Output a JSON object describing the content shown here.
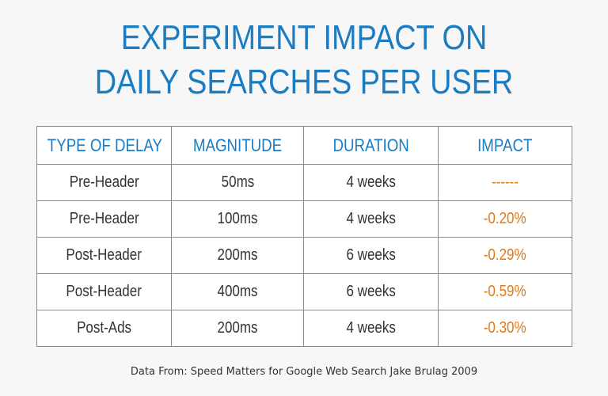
{
  "title": {
    "line1": "EXPERIMENT IMPACT ON",
    "line2": "DAILY SEARCHES PER USER"
  },
  "table": {
    "headers": [
      "TYPE OF DELAY",
      "MAGNITUDE",
      "DURATION",
      "IMPACT"
    ],
    "rows": [
      {
        "type": "Pre-Header",
        "magnitude": "50ms",
        "duration": "4 weeks",
        "impact": "------"
      },
      {
        "type": "Pre-Header",
        "magnitude": "100ms",
        "duration": "4 weeks",
        "impact": "-0.20%"
      },
      {
        "type": "Post-Header",
        "magnitude": "200ms",
        "duration": "6 weeks",
        "impact": "-0.29%"
      },
      {
        "type": "Post-Header",
        "magnitude": "400ms",
        "duration": "6 weeks",
        "impact": "-0.59%"
      },
      {
        "type": "Post-Ads",
        "magnitude": "200ms",
        "duration": "4 weeks",
        "impact": "-0.30%"
      }
    ]
  },
  "footer": "Data From: Speed Matters for Google Web Search Jake Brulag 2009",
  "colors": {
    "title": "#1b7cc2",
    "header_text": "#1b7cc2",
    "impact_text": "#e07a1b",
    "body_text": "#333333",
    "background": "#f7f7f7"
  }
}
